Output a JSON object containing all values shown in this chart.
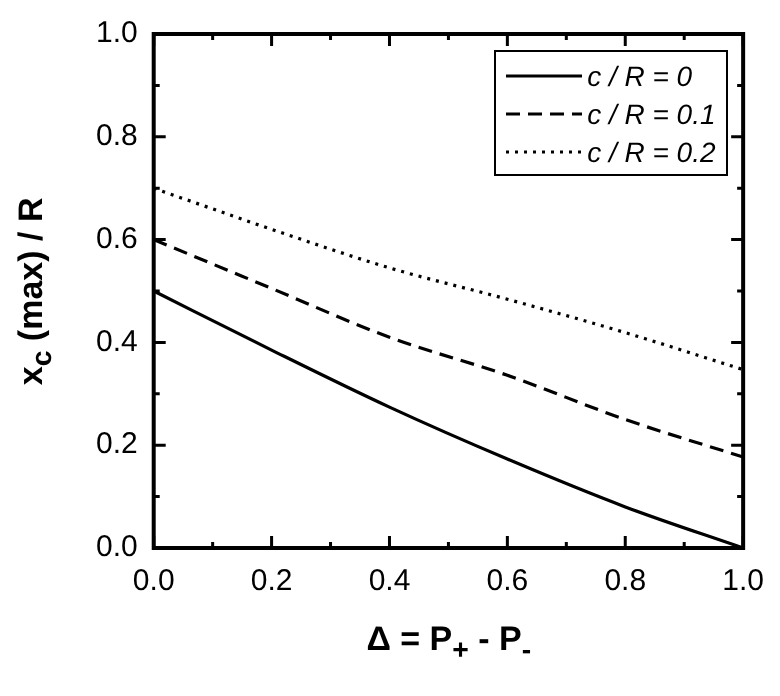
{
  "chart_data": {
    "type": "line",
    "xlabel": "Δ = P$_{+}$ - P$_{-}$",
    "ylabel": "x$_{c}$ (max) / R",
    "x": [
      0,
      0.2,
      0.4,
      0.6,
      0.8,
      1.0
    ],
    "series": [
      {
        "name": "c / R = 0",
        "color": "#000000",
        "line_style": "solid",
        "values": [
          0.5,
          0.385,
          0.274,
          0.173,
          0.08,
          0.0
        ]
      },
      {
        "name": "c / R = 0.1",
        "color": "#000000",
        "line_style": "dashed",
        "values": [
          0.6,
          0.505,
          0.41,
          0.336,
          0.25,
          0.177
        ]
      },
      {
        "name": "c / R = 0.2",
        "color": "#000000",
        "line_style": "dotted",
        "values": [
          0.7,
          0.62,
          0.545,
          0.484,
          0.419,
          0.347
        ]
      }
    ],
    "xlim": [
      0,
      1.0
    ],
    "ylim": [
      0,
      1.0
    ],
    "xticks": [
      {
        "value": 0,
        "label": "0.0"
      },
      {
        "value": 0.1,
        "label": null
      },
      {
        "value": 0.2,
        "label": "0.2"
      },
      {
        "value": 0.3,
        "label": null
      },
      {
        "value": 0.4,
        "label": "0.4"
      },
      {
        "value": 0.5,
        "label": null
      },
      {
        "value": 0.6,
        "label": "0.6"
      },
      {
        "value": 0.7,
        "label": null
      },
      {
        "value": 0.8,
        "label": "0.8"
      },
      {
        "value": 0.9,
        "label": null
      },
      {
        "value": 1.0,
        "label": "1.0"
      }
    ],
    "yticks": [
      {
        "value": 0,
        "label": "0.0"
      },
      {
        "value": 0.1,
        "label": null
      },
      {
        "value": 0.2,
        "label": "0.2"
      },
      {
        "value": 0.3,
        "label": null
      },
      {
        "value": 0.4,
        "label": "0.4"
      },
      {
        "value": 0.5,
        "label": null
      },
      {
        "value": 0.6,
        "label": "0.6"
      },
      {
        "value": 0.7,
        "label": null
      },
      {
        "value": 0.8,
        "label": "0.8"
      },
      {
        "value": 0.9,
        "label": null
      },
      {
        "value": 1.0,
        "label": "1.0"
      }
    ],
    "grid": false,
    "legend": "top right",
    "marker": "none"
  }
}
